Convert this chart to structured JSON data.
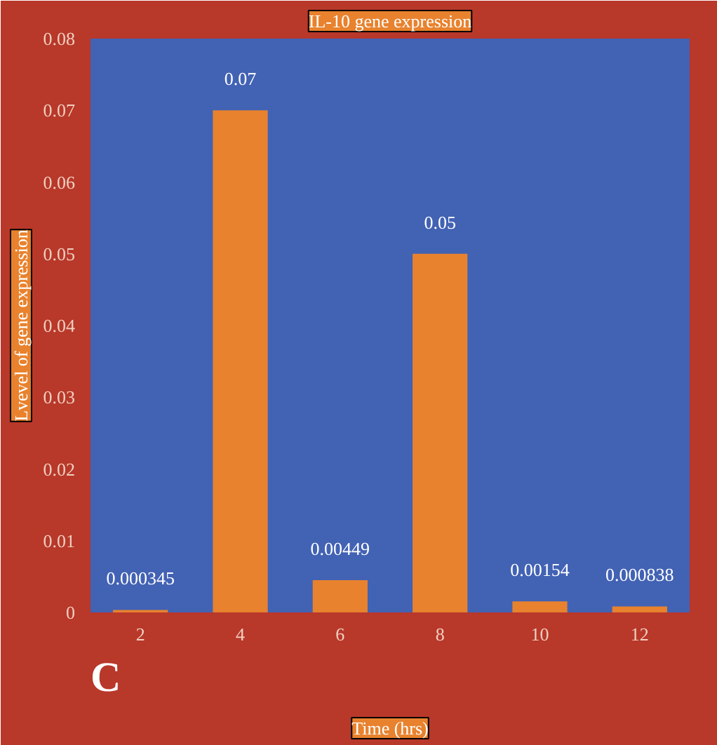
{
  "chart_data": {
    "type": "bar",
    "title": "IL-10 gene expression",
    "xlabel": "Time (hrs)",
    "ylabel": "Lvevel of gene expression",
    "categories": [
      "2",
      "4",
      "6",
      "8",
      "10",
      "12"
    ],
    "values": [
      0.000345,
      0.07,
      0.00449,
      0.05,
      0.00154,
      0.000838
    ],
    "color": "#e8822e",
    "ylim": [
      0,
      0.08
    ],
    "yticks": [
      0,
      0.01,
      0.02,
      0.03,
      0.04,
      0.05,
      0.06,
      0.07,
      0.08
    ],
    "data_labels": true,
    "grid": false,
    "annotations": [
      "C"
    ]
  }
}
